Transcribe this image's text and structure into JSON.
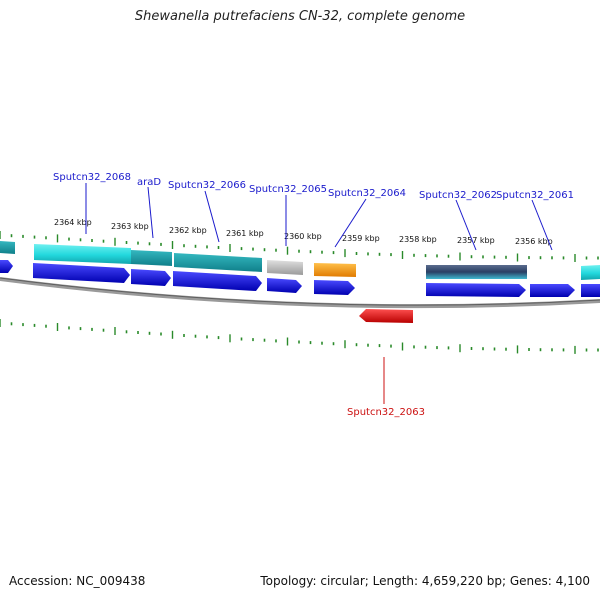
{
  "title": "Shewanella putrefaciens CN-32, complete genome",
  "footer": {
    "accession": "Accession: NC_009438",
    "summary": "Topology: circular; Length: 4,659,220 bp; Genes: 4,100"
  },
  "colors": {
    "cds": "#1a1aee",
    "cds_reverse": "#ee1111",
    "rna": "#ff9900",
    "label_forward": "#1a1acc",
    "label_reverse": "#cc1111",
    "tick": "#2a8a2a",
    "backbone": "#888888"
  },
  "kbp_labels": [
    "2364 kbp",
    "2363 kbp",
    "2362 kbp",
    "2361 kbp",
    "2360 kbp",
    "2359 kbp",
    "2358 kbp",
    "2357 kbp",
    "2356 kbp"
  ],
  "gene_labels": [
    {
      "text": "Sputcn32_2068",
      "strand": "forward"
    },
    {
      "text": "araD",
      "strand": "forward"
    },
    {
      "text": "Sputcn32_2066",
      "strand": "forward"
    },
    {
      "text": "Sputcn32_2065",
      "strand": "forward"
    },
    {
      "text": "Sputcn32_2064",
      "strand": "forward"
    },
    {
      "text": "Sputcn32_2062",
      "strand": "forward"
    },
    {
      "text": "Sputcn32_2061",
      "strand": "forward"
    },
    {
      "text": "Sputcn32_2063",
      "strand": "reverse"
    }
  ]
}
